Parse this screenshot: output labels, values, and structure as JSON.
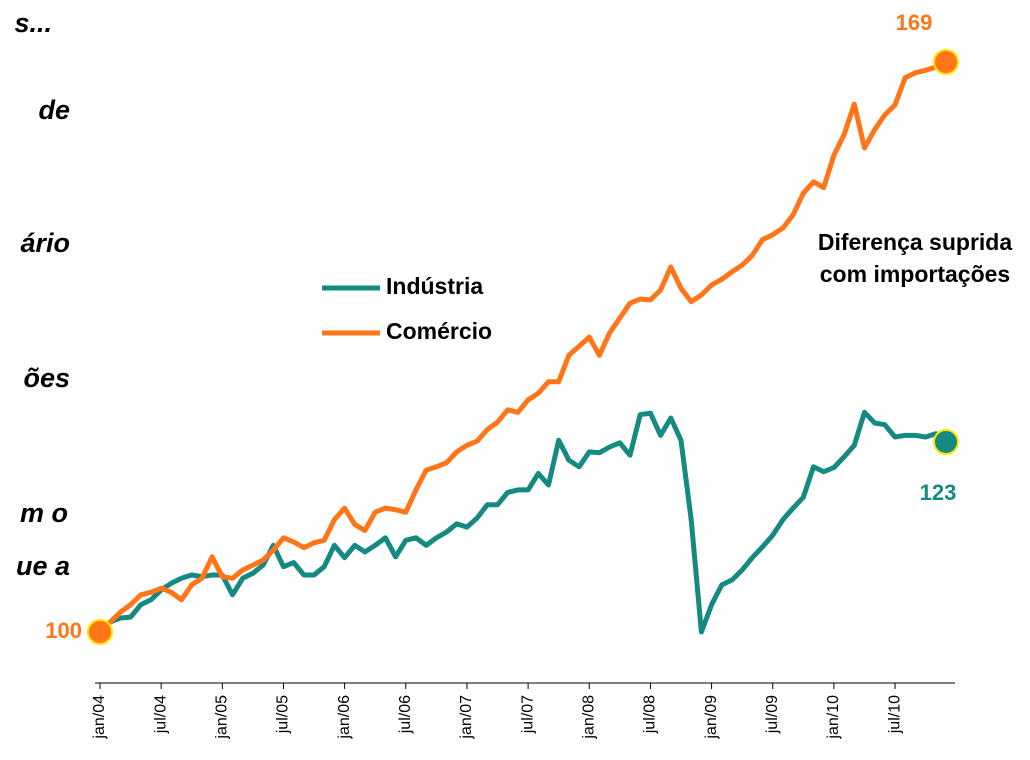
{
  "side_text": [
    "s...",
    "de",
    "ário",
    "ões",
    "m o",
    "ue a"
  ],
  "chart_data": {
    "type": "line",
    "categories": [
      "jan/04",
      null,
      null,
      null,
      null,
      null,
      "jul/04",
      null,
      null,
      null,
      null,
      null,
      "jan/05",
      null,
      null,
      null,
      null,
      null,
      "jul/05",
      null,
      null,
      null,
      null,
      null,
      "jan/06",
      null,
      null,
      null,
      null,
      null,
      "jul/06",
      null,
      null,
      null,
      null,
      null,
      "jan/07",
      null,
      null,
      null,
      null,
      null,
      "jul/07",
      null,
      null,
      null,
      null,
      null,
      "jan/08",
      null,
      null,
      null,
      null,
      null,
      "jul/08",
      null,
      null,
      null,
      null,
      null,
      "jan/09",
      null,
      null,
      null,
      null,
      null,
      "jul/09",
      null,
      null,
      null,
      null,
      null,
      "jan/10",
      null,
      null,
      null,
      null,
      null,
      "jul/10",
      null,
      null,
      null,
      null,
      null
    ],
    "series": [
      {
        "name": "Indústria",
        "color": "#148a82",
        "values": [
          100,
          101.2,
          101.7,
          101.8,
          103.3,
          103.9,
          105.1,
          105.9,
          106.5,
          106.9,
          106.7,
          106.9,
          106.9,
          104.5,
          106.5,
          107.1,
          108.1,
          110.5,
          107.9,
          108.4,
          106.9,
          106.9,
          107.9,
          110.5,
          109.0,
          110.5,
          109.7,
          110.5,
          111.4,
          109.1,
          111.1,
          111.4,
          110.5,
          111.4,
          112.1,
          113.1,
          112.7,
          113.8,
          115.4,
          115.4,
          116.9,
          117.2,
          117.2,
          119.2,
          117.8,
          123.2,
          120.8,
          120.0,
          121.8,
          121.7,
          122.4,
          122.9,
          121.4,
          126.3,
          126.5,
          123.8,
          125.9,
          123.2,
          113.6,
          100.0,
          103.3,
          105.7,
          106.3,
          107.5,
          109.0,
          110.3,
          111.7,
          113.6,
          115.0,
          116.3,
          120.0,
          119.4,
          119.9,
          121.2,
          122.6,
          126.6,
          125.3,
          125.1,
          123.6,
          123.8,
          123.8,
          123.6,
          124.0,
          123
        ]
      },
      {
        "name": "Comércio",
        "color": "#ff7518",
        "values": [
          100,
          101.2,
          102.4,
          103.3,
          104.5,
          104.8,
          105.3,
          104.8,
          103.9,
          105.7,
          106.5,
          109.1,
          106.7,
          106.5,
          107.5,
          108.1,
          108.7,
          109.9,
          111.4,
          110.9,
          110.2,
          110.8,
          111.1,
          113.6,
          115.0,
          113.0,
          112.3,
          114.5,
          115.0,
          114.8,
          114.5,
          117.2,
          119.6,
          120.0,
          120.5,
          121.8,
          122.6,
          123.1,
          124.5,
          125.4,
          126.9,
          126.6,
          128.1,
          128.9,
          130.3,
          130.3,
          133.5,
          134.6,
          135.7,
          133.5,
          136.2,
          138.0,
          139.8,
          140.3,
          140.2,
          141.4,
          144.2,
          141.6,
          140.0,
          140.8,
          142.0,
          142.7,
          143.6,
          144.4,
          145.6,
          147.5,
          148.1,
          148.9,
          150.5,
          153.1,
          154.5,
          153.8,
          157.7,
          160.2,
          163.9,
          158.6,
          160.8,
          162.6,
          163.8,
          167.1,
          167.7,
          168.0,
          168.4,
          169
        ]
      }
    ],
    "annotation": "Diferença suprida com importações",
    "endpoint_color": "#ffe600"
  }
}
